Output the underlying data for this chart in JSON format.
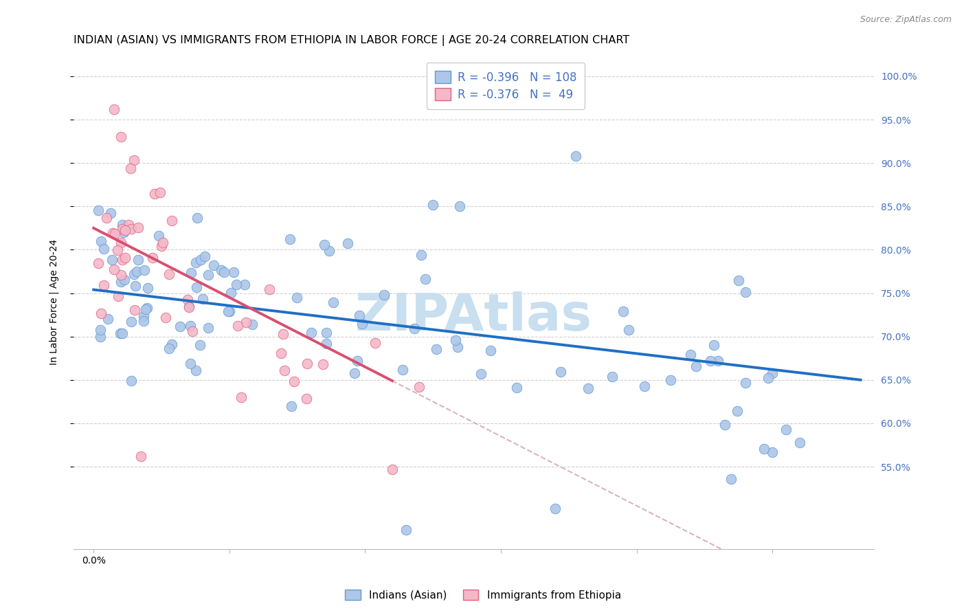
{
  "title": "INDIAN (ASIAN) VS IMMIGRANTS FROM ETHIOPIA IN LABOR FORCE | AGE 20-24 CORRELATION CHART",
  "source": "Source: ZipAtlas.com",
  "ylabel": "In Labor Force | Age 20-24",
  "color_blue_fill": "#aec6e8",
  "color_blue_edge": "#5b9bd5",
  "color_pink_fill": "#f4b8c8",
  "color_pink_edge": "#e06080",
  "line_blue": "#1f6fc5",
  "line_pink": "#d94f70",
  "line_dashed_color": "#d0a0b0",
  "watermark_color": "#c8dff0",
  "right_tick_color": "#4472c4",
  "title_fontsize": 11.5,
  "source_fontsize": 9,
  "ylabel_fontsize": 10,
  "tick_fontsize": 10,
  "legend_fontsize": 12,
  "scatter_size": 110,
  "xlim_min": -0.003,
  "xlim_max": 0.115,
  "ylim_min": 0.455,
  "ylim_max": 1.025,
  "blue_slope": -0.92,
  "blue_intercept": 0.754,
  "pink_slope": -4.0,
  "pink_intercept": 0.825,
  "pink_line_xmax": 0.044,
  "dash_line_xmin": 0.038,
  "dash_line_xmax": 0.115
}
